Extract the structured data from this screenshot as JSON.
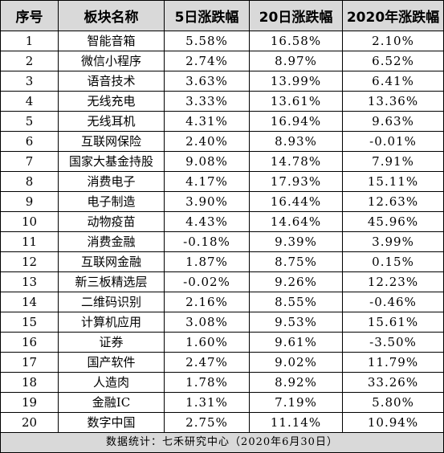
{
  "table": {
    "headers": [
      "序号",
      "板块名称",
      "5日涨跌幅",
      "20日涨跌幅",
      "2020年涨跌幅"
    ],
    "rows": [
      [
        "1",
        "智能音箱",
        "5.58%",
        "16.58%",
        "2.10%"
      ],
      [
        "2",
        "微信小程序",
        "2.74%",
        "8.97%",
        "6.52%"
      ],
      [
        "3",
        "语音技术",
        "3.63%",
        "13.99%",
        "6.41%"
      ],
      [
        "4",
        "无线充电",
        "3.33%",
        "13.61%",
        "13.36%"
      ],
      [
        "5",
        "无线耳机",
        "4.31%",
        "16.94%",
        "9.63%"
      ],
      [
        "6",
        "互联网保险",
        "2.40%",
        "8.93%",
        "-0.01%"
      ],
      [
        "7",
        "国家大基金持股",
        "9.08%",
        "14.78%",
        "7.91%"
      ],
      [
        "8",
        "消费电子",
        "4.17%",
        "17.93%",
        "15.11%"
      ],
      [
        "9",
        "电子制造",
        "3.90%",
        "16.44%",
        "12.63%"
      ],
      [
        "10",
        "动物疫苗",
        "4.43%",
        "14.64%",
        "45.96%"
      ],
      [
        "11",
        "消费金融",
        "-0.18%",
        "9.39%",
        "3.99%"
      ],
      [
        "12",
        "互联网金融",
        "1.87%",
        "8.75%",
        "0.15%"
      ],
      [
        "13",
        "新三板精选层",
        "-0.02%",
        "9.26%",
        "12.23%"
      ],
      [
        "14",
        "二维码识别",
        "2.16%",
        "8.55%",
        "-0.46%"
      ],
      [
        "15",
        "计算机应用",
        "3.08%",
        "9.53%",
        "15.61%"
      ],
      [
        "16",
        "证券",
        "1.60%",
        "9.61%",
        "-3.50%"
      ],
      [
        "17",
        "国产软件",
        "2.47%",
        "9.02%",
        "11.79%"
      ],
      [
        "18",
        "人造肉",
        "1.78%",
        "8.92%",
        "33.26%"
      ],
      [
        "19",
        "金融IC",
        "1.31%",
        "7.19%",
        "5.80%"
      ],
      [
        "20",
        "数字中国",
        "2.75%",
        "11.14%",
        "10.94%"
      ]
    ],
    "footer": "数据统计：七禾研究中心（2020年6月30日）"
  },
  "colors": {
    "header_bg": "#d9d9d9",
    "footer_bg": "#d9d9d9",
    "border": "#000000",
    "text": "#000000"
  }
}
